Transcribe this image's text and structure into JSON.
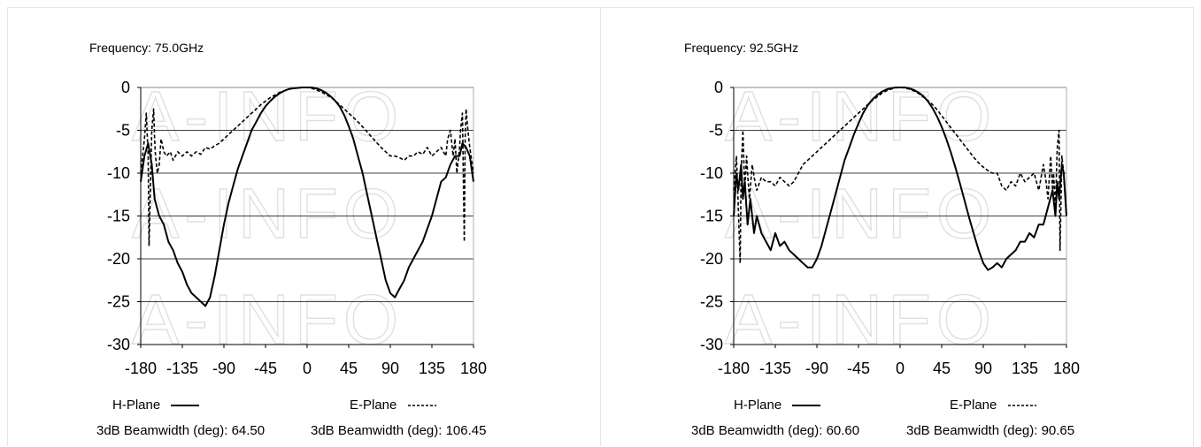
{
  "panels": [
    {
      "frequency_label": "Frequency: 75.0GHz",
      "hplane_label": "H-Plane",
      "eplane_label": "E-Plane",
      "hplane_bw_label": "3dB Beamwidth (deg): 64.50",
      "eplane_bw_label": "3dB Beamwidth (deg): 106.45",
      "watermark": "A-INFO"
    },
    {
      "frequency_label": "Frequency: 92.5GHz",
      "hplane_label": "H-Plane",
      "eplane_label": "E-Plane",
      "hplane_bw_label": "3dB Beamwidth (deg): 60.60",
      "eplane_bw_label": "3dB Beamwidth (deg): 90.65",
      "watermark": "A-INFO"
    }
  ],
  "chart_data": [
    {
      "type": "line",
      "title": "Frequency: 75.0GHz",
      "xlabel": "",
      "ylabel": "",
      "xlim": [
        -180,
        180
      ],
      "ylim": [
        -30,
        0
      ],
      "xticks": [
        -180,
        -135,
        -90,
        -45,
        0,
        45,
        90,
        135,
        180
      ],
      "yticks": [
        0,
        -5,
        -10,
        -15,
        -20,
        -25,
        -30
      ],
      "grid": "horizontal",
      "series": [
        {
          "name": "H-Plane",
          "style": "solid",
          "x": [
            -180,
            -176,
            -172,
            -168,
            -165,
            -160,
            -155,
            -150,
            -145,
            -140,
            -135,
            -130,
            -125,
            -120,
            -115,
            -110,
            -105,
            -100,
            -95,
            -90,
            -85,
            -80,
            -75,
            -70,
            -65,
            -60,
            -55,
            -50,
            -45,
            -40,
            -35,
            -30,
            -25,
            -20,
            -15,
            -10,
            -5,
            0,
            5,
            10,
            15,
            20,
            25,
            30,
            35,
            40,
            45,
            50,
            55,
            60,
            65,
            70,
            75,
            80,
            85,
            90,
            95,
            100,
            105,
            110,
            115,
            120,
            125,
            130,
            135,
            140,
            145,
            150,
            155,
            160,
            165,
            168,
            172,
            176,
            180
          ],
          "y": [
            -11,
            -8,
            -6.5,
            -9,
            -13,
            -15,
            -16,
            -18,
            -19,
            -20.5,
            -21.5,
            -23,
            -24,
            -24.5,
            -25,
            -25.5,
            -24.5,
            -22,
            -19,
            -16,
            -13.5,
            -11.5,
            -9.5,
            -8,
            -6.5,
            -5,
            -4,
            -3,
            -2.2,
            -1.6,
            -1.1,
            -0.7,
            -0.4,
            -0.2,
            -0.1,
            -0.05,
            0,
            0,
            0,
            -0.1,
            -0.3,
            -0.6,
            -1,
            -1.5,
            -2.2,
            -3.2,
            -4.5,
            -6,
            -8,
            -10,
            -12.5,
            -15,
            -17.5,
            -20,
            -22.5,
            -24,
            -24.5,
            -23.5,
            -22.5,
            -21,
            -20,
            -19,
            -18,
            -16.5,
            -15,
            -13,
            -11,
            -10.5,
            -9,
            -8,
            -8,
            -6.5,
            -7,
            -8,
            -11
          ]
        },
        {
          "name": "E-Plane",
          "style": "dashed",
          "x": [
            -180,
            -176,
            -174,
            -172,
            -171,
            -170,
            -168,
            -166,
            -165,
            -164,
            -162,
            -160,
            -158,
            -155,
            -152,
            -148,
            -145,
            -140,
            -135,
            -130,
            -125,
            -120,
            -115,
            -110,
            -105,
            -100,
            -95,
            -90,
            -85,
            -80,
            -75,
            -70,
            -65,
            -60,
            -55,
            -50,
            -45,
            -40,
            -35,
            -30,
            -25,
            -20,
            -15,
            -10,
            -5,
            0,
            5,
            10,
            15,
            20,
            25,
            30,
            35,
            40,
            45,
            50,
            55,
            60,
            65,
            70,
            75,
            80,
            85,
            90,
            95,
            100,
            105,
            110,
            115,
            120,
            125,
            130,
            135,
            140,
            145,
            150,
            152,
            155,
            158,
            160,
            162,
            164,
            165,
            166,
            168,
            170,
            171,
            172,
            174,
            176,
            180
          ],
          "y": [
            -10,
            -6,
            -3,
            -8,
            -18.5,
            -14,
            -5,
            -2.5,
            -6,
            -8,
            -10,
            -9,
            -6,
            -7.5,
            -8,
            -7.5,
            -8.5,
            -7.5,
            -8,
            -7.5,
            -8,
            -7.5,
            -7.8,
            -7,
            -7.2,
            -6.8,
            -6.5,
            -6,
            -5.5,
            -5,
            -4.5,
            -4,
            -3.5,
            -3,
            -2.5,
            -2,
            -1.6,
            -1.2,
            -0.9,
            -0.6,
            -0.4,
            -0.2,
            -0.1,
            -0.05,
            0,
            0,
            -0.1,
            -0.3,
            -0.5,
            -0.8,
            -1.1,
            -1.5,
            -2,
            -2.5,
            -3,
            -3.5,
            -4,
            -4.6,
            -5.2,
            -5.8,
            -6.4,
            -7,
            -7.5,
            -8,
            -8,
            -8.2,
            -8.5,
            -8,
            -8,
            -7.5,
            -7.8,
            -7,
            -8,
            -7.5,
            -7,
            -8,
            -6,
            -5,
            -8,
            -6,
            -10,
            -8,
            -7,
            -5,
            -3,
            -18,
            -6,
            -2.5,
            -5,
            -7,
            -10
          ]
        }
      ]
    },
    {
      "type": "line",
      "title": "Frequency: 92.5GHz",
      "xlabel": "",
      "ylabel": "",
      "xlim": [
        -180,
        180
      ],
      "ylim": [
        -30,
        0
      ],
      "xticks": [
        -180,
        -135,
        -90,
        -45,
        0,
        45,
        90,
        135,
        180
      ],
      "yticks": [
        0,
        -5,
        -10,
        -15,
        -20,
        -25,
        -30
      ],
      "grid": "horizontal",
      "series": [
        {
          "name": "H-Plane",
          "style": "solid",
          "x": [
            -180,
            -177,
            -175,
            -172,
            -170,
            -168,
            -165,
            -162,
            -158,
            -155,
            -150,
            -145,
            -140,
            -135,
            -130,
            -125,
            -120,
            -115,
            -110,
            -105,
            -100,
            -95,
            -90,
            -85,
            -80,
            -75,
            -70,
            -65,
            -60,
            -55,
            -50,
            -45,
            -40,
            -35,
            -30,
            -25,
            -20,
            -15,
            -10,
            -5,
            0,
            5,
            10,
            15,
            20,
            25,
            30,
            35,
            40,
            45,
            50,
            55,
            60,
            65,
            70,
            75,
            80,
            85,
            90,
            95,
            100,
            105,
            110,
            115,
            120,
            125,
            130,
            135,
            140,
            145,
            150,
            155,
            160,
            165,
            168,
            170,
            172,
            175,
            177,
            180
          ],
          "y": [
            -15,
            -10,
            -12,
            -9,
            -13,
            -11,
            -16,
            -13,
            -17,
            -15,
            -17,
            -18,
            -19,
            -17,
            -18.5,
            -18,
            -19,
            -19.5,
            -20,
            -20.5,
            -21,
            -21,
            -20,
            -18.5,
            -16.5,
            -14.5,
            -12.5,
            -10.5,
            -8.5,
            -7,
            -5.5,
            -4.2,
            -3,
            -2.1,
            -1.4,
            -0.9,
            -0.5,
            -0.25,
            -0.1,
            0,
            0,
            0,
            -0.1,
            -0.3,
            -0.6,
            -1,
            -1.6,
            -2.4,
            -3.4,
            -4.6,
            -6,
            -7.6,
            -9.4,
            -11.3,
            -13.3,
            -15.3,
            -17.2,
            -19,
            -20.5,
            -21.3,
            -21,
            -20.5,
            -21,
            -20,
            -19.5,
            -19,
            -18,
            -18,
            -17,
            -17.5,
            -16,
            -16,
            -14,
            -12,
            -15,
            -11,
            -13,
            -9,
            -10,
            -15
          ]
        },
        {
          "name": "E-Plane",
          "style": "dashed",
          "x": [
            -180,
            -177,
            -175,
            -173,
            -172,
            -170,
            -168,
            -166,
            -165,
            -163,
            -160,
            -157,
            -155,
            -150,
            -145,
            -140,
            -135,
            -130,
            -125,
            -120,
            -115,
            -110,
            -105,
            -100,
            -95,
            -90,
            -85,
            -80,
            -75,
            -70,
            -65,
            -60,
            -55,
            -50,
            -45,
            -40,
            -35,
            -30,
            -25,
            -20,
            -15,
            -10,
            -5,
            0,
            5,
            10,
            15,
            20,
            25,
            30,
            35,
            40,
            45,
            50,
            55,
            60,
            65,
            70,
            75,
            80,
            85,
            90,
            95,
            100,
            105,
            110,
            115,
            120,
            125,
            130,
            135,
            140,
            145,
            150,
            155,
            158,
            160,
            163,
            165,
            166,
            168,
            170,
            172,
            173,
            175,
            177,
            180
          ],
          "y": [
            -12,
            -8,
            -14,
            -20.5,
            -10,
            -5,
            -12,
            -8,
            -10,
            -13,
            -9,
            -11,
            -12,
            -10.5,
            -11,
            -11,
            -11.5,
            -10.5,
            -11,
            -11.5,
            -11,
            -10,
            -9,
            -8.5,
            -8,
            -7.5,
            -7,
            -6.5,
            -6,
            -5.5,
            -5,
            -4.5,
            -4,
            -3.5,
            -3,
            -2.5,
            -2,
            -1.5,
            -1.1,
            -0.7,
            -0.4,
            -0.2,
            -0.05,
            0,
            -0.05,
            -0.2,
            -0.4,
            -0.7,
            -1.1,
            -1.5,
            -2,
            -2.6,
            -3.3,
            -4,
            -4.7,
            -5.4,
            -6.1,
            -6.8,
            -7.5,
            -8.2,
            -8.8,
            -9.3,
            -9.7,
            -10,
            -10,
            -11.5,
            -12,
            -11,
            -11.5,
            -10,
            -11,
            -10.5,
            -10,
            -12,
            -9,
            -11,
            -13,
            -8,
            -12,
            -10,
            -14,
            -7,
            -5,
            -19,
            -8,
            -10,
            -15
          ]
        }
      ]
    }
  ]
}
